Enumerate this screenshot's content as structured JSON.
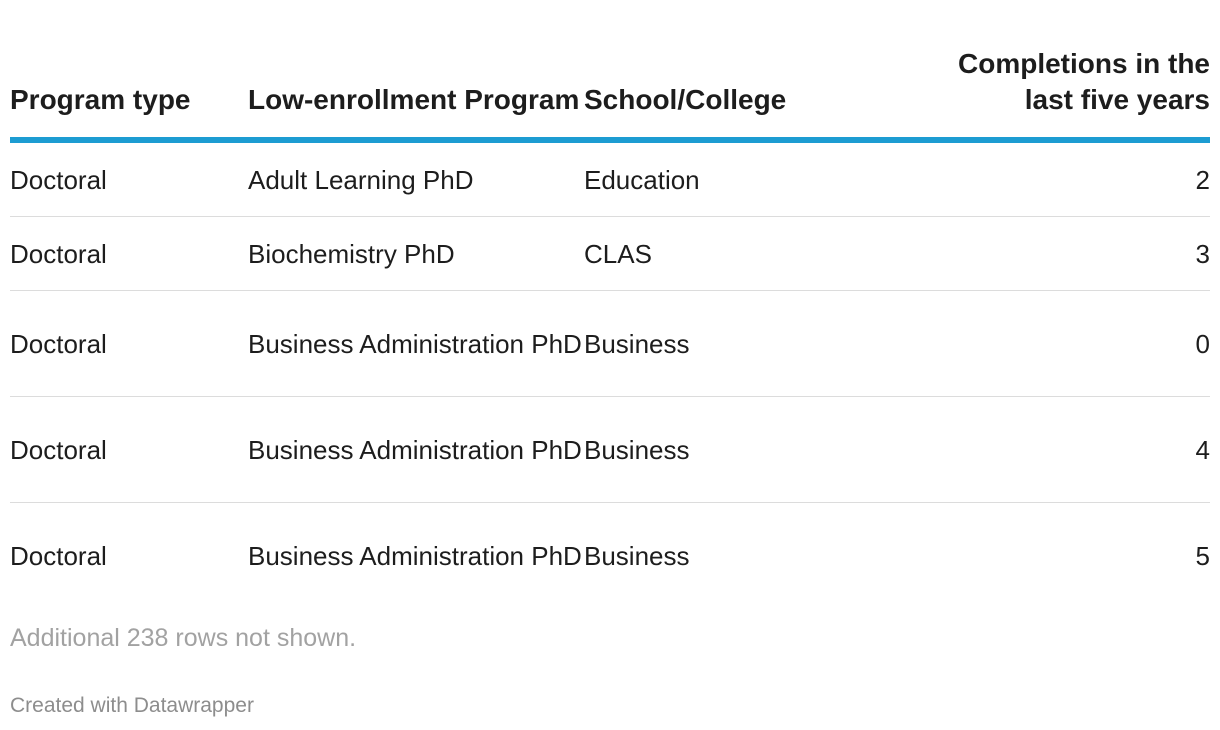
{
  "chart_data": {
    "type": "table",
    "columns": [
      "Program type",
      "Low-enrollment Program",
      "School/College",
      "Completions in the last five years"
    ],
    "rows": [
      [
        "Doctoral",
        "Adult Learning PhD",
        "Education",
        2
      ],
      [
        "Doctoral",
        "Biochemistry PhD",
        "CLAS",
        3
      ],
      [
        "Doctoral",
        "Business Administration PhD",
        "Business",
        0
      ],
      [
        "Doctoral",
        "Business Administration PhD",
        "Business",
        4
      ],
      [
        "Doctoral",
        "Business Administration PhD",
        "Business",
        5
      ]
    ],
    "accent_color": "#1d9cd2"
  },
  "notes": "Additional 238 rows not shown.",
  "credit": "Created with Datawrapper"
}
